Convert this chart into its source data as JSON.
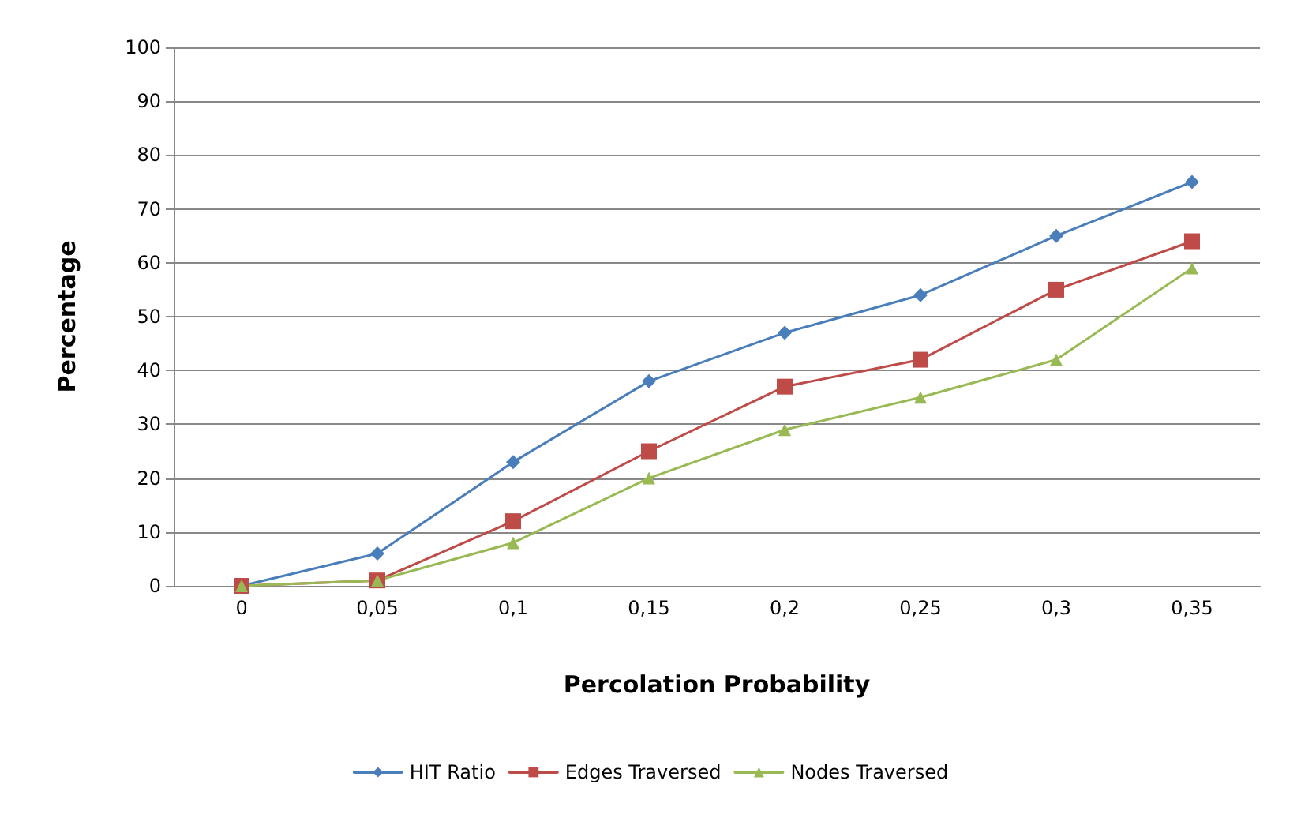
{
  "chart_data": {
    "type": "line",
    "xlabel": "Percolation Probability",
    "ylabel": "Percentage",
    "categories": [
      "0",
      "0,05",
      "0,1",
      "0,15",
      "0,2",
      "0,25",
      "0,3",
      "0,35"
    ],
    "series": [
      {
        "name": "HIT Ratio",
        "color": "#4a7ebb",
        "marker": "diamond",
        "values": [
          0,
          6,
          23,
          38,
          47,
          54,
          65,
          75
        ]
      },
      {
        "name": "Edges Traversed",
        "color": "#be4b48",
        "marker": "square",
        "values": [
          0,
          1,
          12,
          25,
          37,
          42,
          55,
          64
        ]
      },
      {
        "name": "Nodes Traversed",
        "color": "#98b954",
        "marker": "triangle",
        "values": [
          0,
          1,
          8,
          20,
          29,
          35,
          42,
          59
        ]
      }
    ],
    "ylim": [
      0,
      100
    ],
    "yticks": [
      0,
      10,
      20,
      30,
      40,
      50,
      60,
      70,
      80,
      90,
      100
    ],
    "grid": "y",
    "legend": "bottom",
    "line_style": "solid"
  }
}
